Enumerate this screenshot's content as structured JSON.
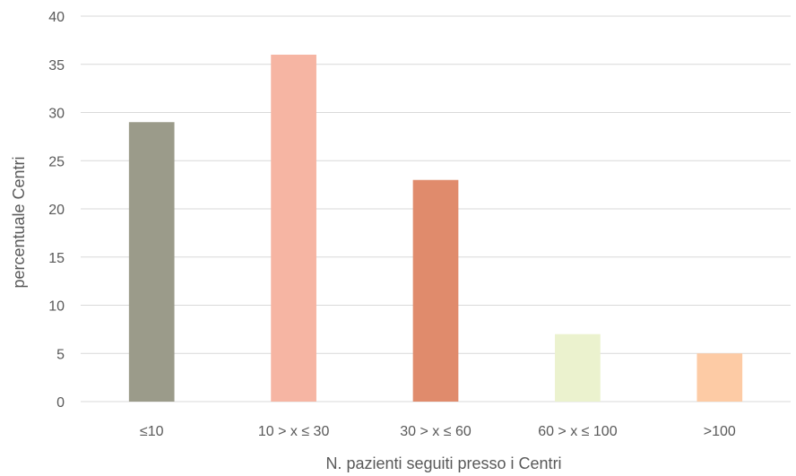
{
  "chart_data": {
    "type": "bar",
    "categories": [
      "≤10",
      "10 > x ≤ 30",
      "30 > x ≤ 60",
      "60 > x ≤ 100",
      ">100"
    ],
    "values": [
      29,
      36,
      23,
      7,
      5
    ],
    "colors": [
      "#9b9b8a",
      "#f6b5a3",
      "#e08b6c",
      "#ebf2ce",
      "#fdcba5"
    ],
    "title": "",
    "xlabel": "N. pazienti seguiti presso i Centri",
    "ylabel": "percentuale Centri",
    "ylim": [
      0,
      40
    ],
    "yticks": [
      0,
      5,
      10,
      15,
      20,
      25,
      30,
      35,
      40
    ],
    "grid": true,
    "legend": "none"
  }
}
